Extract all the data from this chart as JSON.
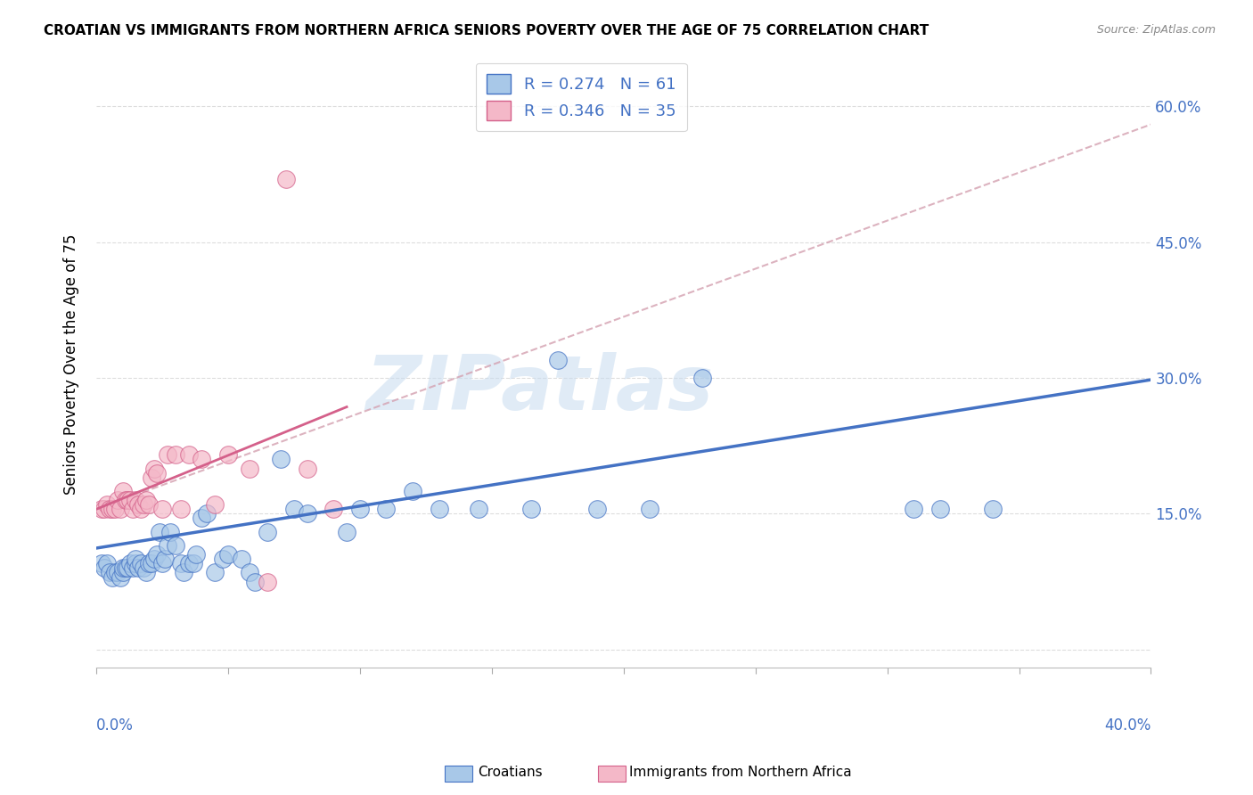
{
  "title": "CROATIAN VS IMMIGRANTS FROM NORTHERN AFRICA SENIORS POVERTY OVER THE AGE OF 75 CORRELATION CHART",
  "source": "Source: ZipAtlas.com",
  "ylabel": "Seniors Poverty Over the Age of 75",
  "xlim": [
    0.0,
    0.4
  ],
  "ylim": [
    -0.02,
    0.65
  ],
  "yticks": [
    0.0,
    0.15,
    0.3,
    0.45,
    0.6
  ],
  "ytick_labels": [
    "",
    "15.0%",
    "30.0%",
    "45.0%",
    "60.0%"
  ],
  "xtick_positions": [
    0.0,
    0.05,
    0.1,
    0.15,
    0.2,
    0.25,
    0.3,
    0.35,
    0.4
  ],
  "legend_r1": "0.274",
  "legend_n1": "61",
  "legend_r2": "0.346",
  "legend_n2": "35",
  "color_croatian_fill": "#a8c8e8",
  "color_croatian_edge": "#4472C4",
  "color_nafr_fill": "#f4b8c8",
  "color_nafr_edge": "#d4608a",
  "color_line_blue": "#4472C4",
  "color_line_pink": "#d4608a",
  "color_line_dashed": "#d4a0b0",
  "watermark": "ZIPatlas",
  "blue_line_x0": 0.0,
  "blue_line_y0": 0.112,
  "blue_line_x1": 0.4,
  "blue_line_y1": 0.298,
  "pink_line_x0": 0.0,
  "pink_line_y0": 0.155,
  "pink_line_x1": 0.095,
  "pink_line_y1": 0.268,
  "dashed_line_x0": 0.0,
  "dashed_line_y0": 0.155,
  "dashed_line_x1": 0.4,
  "dashed_line_y1": 0.58,
  "scatter_croatian_x": [
    0.002,
    0.003,
    0.004,
    0.005,
    0.006,
    0.007,
    0.008,
    0.009,
    0.01,
    0.01,
    0.011,
    0.012,
    0.013,
    0.014,
    0.015,
    0.015,
    0.016,
    0.017,
    0.018,
    0.019,
    0.02,
    0.021,
    0.022,
    0.023,
    0.024,
    0.025,
    0.026,
    0.027,
    0.028,
    0.03,
    0.032,
    0.033,
    0.035,
    0.037,
    0.038,
    0.04,
    0.042,
    0.045,
    0.048,
    0.05,
    0.055,
    0.058,
    0.06,
    0.065,
    0.07,
    0.075,
    0.08,
    0.095,
    0.1,
    0.11,
    0.12,
    0.13,
    0.145,
    0.165,
    0.175,
    0.19,
    0.21,
    0.23,
    0.31,
    0.32,
    0.34
  ],
  "scatter_croatian_y": [
    0.095,
    0.09,
    0.095,
    0.085,
    0.08,
    0.085,
    0.085,
    0.08,
    0.085,
    0.09,
    0.09,
    0.09,
    0.095,
    0.09,
    0.095,
    0.1,
    0.09,
    0.095,
    0.09,
    0.085,
    0.095,
    0.095,
    0.1,
    0.105,
    0.13,
    0.095,
    0.1,
    0.115,
    0.13,
    0.115,
    0.095,
    0.085,
    0.095,
    0.095,
    0.105,
    0.145,
    0.15,
    0.085,
    0.1,
    0.105,
    0.1,
    0.085,
    0.075,
    0.13,
    0.21,
    0.155,
    0.15,
    0.13,
    0.155,
    0.155,
    0.175,
    0.155,
    0.155,
    0.155,
    0.32,
    0.155,
    0.155,
    0.3,
    0.155,
    0.155,
    0.155
  ],
  "scatter_northern_africa_x": [
    0.002,
    0.003,
    0.004,
    0.005,
    0.006,
    0.007,
    0.008,
    0.009,
    0.01,
    0.011,
    0.012,
    0.013,
    0.014,
    0.015,
    0.016,
    0.017,
    0.018,
    0.019,
    0.02,
    0.021,
    0.022,
    0.023,
    0.025,
    0.027,
    0.03,
    0.032,
    0.035,
    0.04,
    0.045,
    0.05,
    0.058,
    0.065,
    0.072,
    0.08,
    0.09
  ],
  "scatter_northern_africa_y": [
    0.155,
    0.155,
    0.16,
    0.155,
    0.155,
    0.155,
    0.165,
    0.155,
    0.175,
    0.165,
    0.165,
    0.165,
    0.155,
    0.165,
    0.16,
    0.155,
    0.16,
    0.165,
    0.16,
    0.19,
    0.2,
    0.195,
    0.155,
    0.215,
    0.215,
    0.155,
    0.215,
    0.21,
    0.16,
    0.215,
    0.2,
    0.075,
    0.52,
    0.2,
    0.155
  ]
}
